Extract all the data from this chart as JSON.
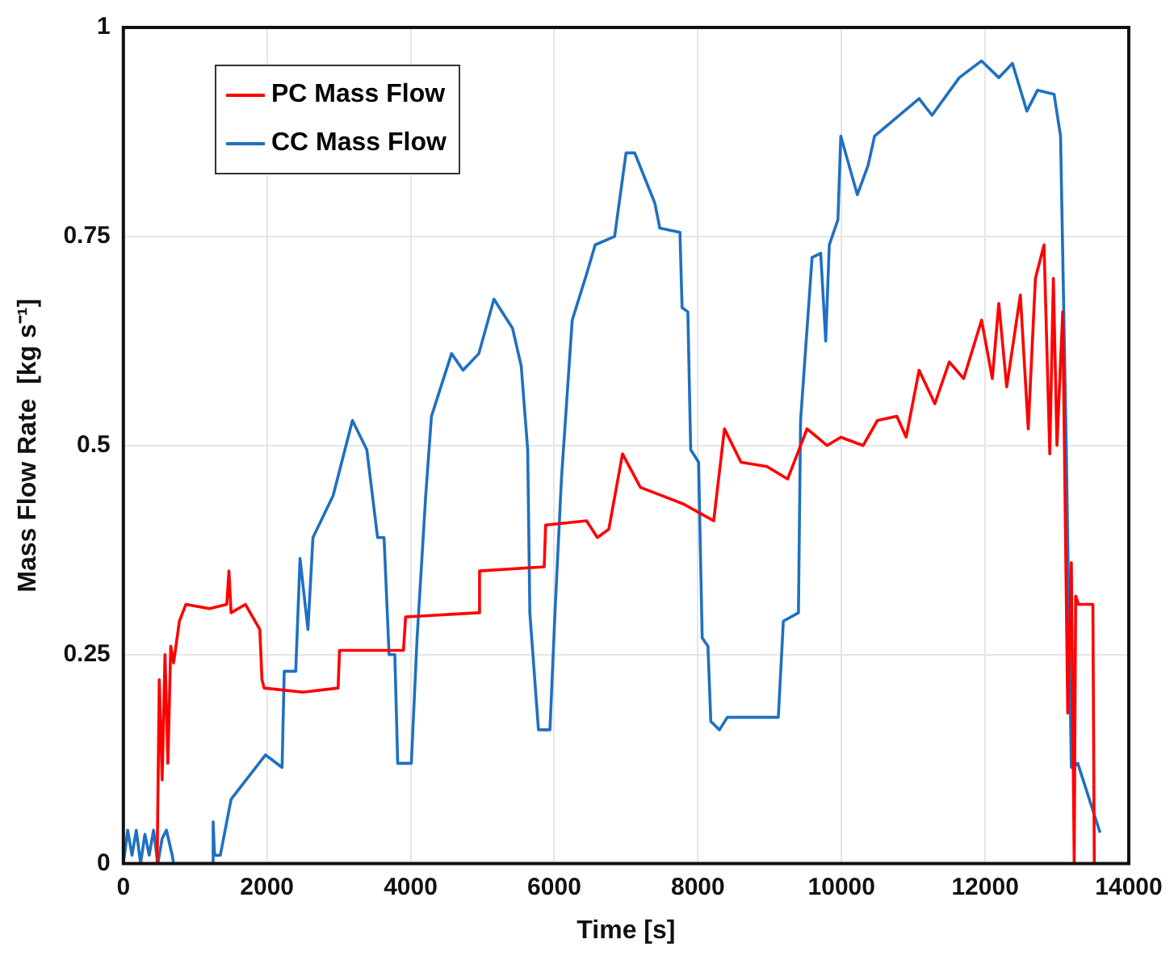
{
  "chart_data": {
    "type": "line",
    "xlabel": "Time [s]",
    "ylabel": "Mass Flow Rate  [kg s⁻¹]",
    "xlim": [
      0,
      14000
    ],
    "xticks": [
      0,
      2000,
      4000,
      6000,
      8000,
      10000,
      12000,
      14000
    ],
    "ylim": [
      0,
      1
    ],
    "yticks": [
      0,
      0.25,
      0.5,
      0.75,
      1
    ],
    "grid": true,
    "legend": "top left",
    "marker": "none",
    "line_style": "solid",
    "series": [
      {
        "name": "PC Mass Flow",
        "color": "#ff0000",
        "x": [
          470,
          500,
          540,
          580,
          620,
          660,
          700,
          780,
          870,
          1200,
          1440,
          1470,
          1500,
          1700,
          1900,
          1930,
          1960,
          2500,
          2990,
          3010,
          3900,
          3930,
          4940,
          4960,
          5860,
          5880,
          6450,
          6600,
          6760,
          6950,
          7200,
          7500,
          7800,
          8010,
          8220,
          8370,
          8600,
          8960,
          9250,
          9520,
          9800,
          9990,
          10300,
          10500,
          10770,
          10900,
          11080,
          11300,
          11500,
          11700,
          11950,
          12100,
          12190,
          12300,
          12490,
          12600,
          12700,
          12820,
          12900,
          12950,
          13000,
          13080,
          13150,
          13200,
          13240,
          13260,
          13300,
          13500,
          13520
        ],
        "values": [
          0,
          0.22,
          0.1,
          0.25,
          0.12,
          0.26,
          0.24,
          0.29,
          0.31,
          0.305,
          0.31,
          0.35,
          0.3,
          0.31,
          0.28,
          0.22,
          0.21,
          0.205,
          0.21,
          0.255,
          0.255,
          0.295,
          0.3,
          0.35,
          0.355,
          0.405,
          0.41,
          0.39,
          0.4,
          0.49,
          0.45,
          0.44,
          0.43,
          0.42,
          0.41,
          0.52,
          0.48,
          0.475,
          0.46,
          0.52,
          0.5,
          0.51,
          0.5,
          0.53,
          0.535,
          0.51,
          0.59,
          0.55,
          0.6,
          0.58,
          0.65,
          0.58,
          0.67,
          0.57,
          0.68,
          0.52,
          0.7,
          0.74,
          0.49,
          0.7,
          0.5,
          0.66,
          0.18,
          0.36,
          0,
          0.32,
          0.31,
          0.31,
          0
        ]
      },
      {
        "name": "CC Mass Flow",
        "color": "#1f70c1",
        "x": [
          0,
          60,
          120,
          180,
          240,
          300,
          360,
          420,
          480,
          540,
          600,
          680,
          700,
          1230,
          1250,
          1270,
          1350,
          1500,
          1980,
          2210,
          2240,
          2400,
          2460,
          2570,
          2640,
          2920,
          3190,
          3390,
          3540,
          3630,
          3700,
          3780,
          3820,
          4010,
          4090,
          4210,
          4290,
          4570,
          4730,
          4950,
          5160,
          5420,
          5540,
          5630,
          5660,
          5780,
          5940,
          6010,
          6100,
          6250,
          6450,
          6570,
          6840,
          7000,
          7120,
          7400,
          7470,
          7750,
          7780,
          7860,
          7900,
          8010,
          8060,
          8140,
          8180,
          8300,
          8410,
          9120,
          9190,
          9400,
          9430,
          9590,
          9710,
          9780,
          9830,
          9950,
          9990,
          10220,
          10370,
          10460,
          11080,
          11260,
          11640,
          11950,
          12190,
          12380,
          12580,
          12730,
          12960,
          13050,
          13130,
          13200,
          13290,
          13600
        ],
        "values": [
          0,
          0.04,
          0.01,
          0.04,
          0,
          0.035,
          0.01,
          0.04,
          0,
          0.03,
          0.04,
          0.01,
          0,
          0,
          0.05,
          0.01,
          0.01,
          0.077,
          0.13,
          0.115,
          0.23,
          0.23,
          0.365,
          0.28,
          0.39,
          0.44,
          0.53,
          0.495,
          0.39,
          0.39,
          0.25,
          0.25,
          0.12,
          0.12,
          0.27,
          0.44,
          0.535,
          0.61,
          0.59,
          0.61,
          0.675,
          0.64,
          0.595,
          0.495,
          0.3,
          0.16,
          0.16,
          0.3,
          0.46,
          0.65,
          0.705,
          0.74,
          0.75,
          0.85,
          0.85,
          0.79,
          0.76,
          0.755,
          0.665,
          0.66,
          0.495,
          0.48,
          0.27,
          0.26,
          0.17,
          0.16,
          0.175,
          0.175,
          0.29,
          0.3,
          0.53,
          0.725,
          0.73,
          0.625,
          0.74,
          0.77,
          0.87,
          0.8,
          0.835,
          0.87,
          0.915,
          0.895,
          0.94,
          0.96,
          0.94,
          0.957,
          0.9,
          0.925,
          0.92,
          0.87,
          0.495,
          0.115,
          0.12,
          0.037
        ]
      }
    ]
  }
}
